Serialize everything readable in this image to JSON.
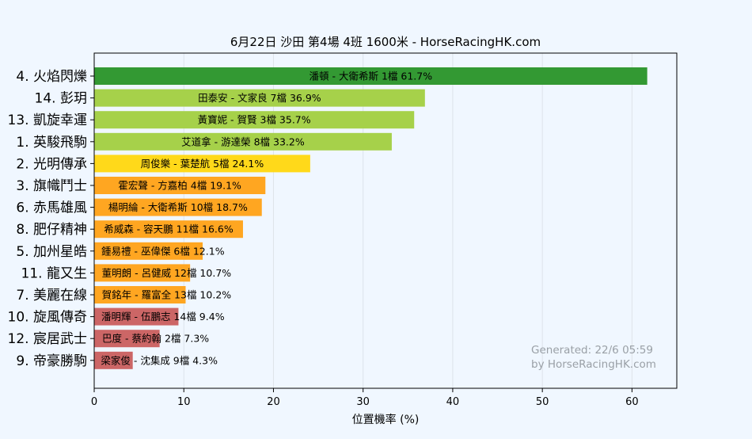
{
  "chart_data": {
    "type": "bar",
    "orientation": "horizontal",
    "title": "6月22日 沙田 第4場 4班 1600米 - HorseRacingHK.com",
    "xlabel": "位置機率 (%)",
    "ylabel": "",
    "xlim": [
      0,
      65
    ],
    "xticks": [
      0,
      10,
      20,
      30,
      40,
      50,
      60
    ],
    "grid": true,
    "categories": [
      "4. 火焰閃爍",
      "14. 彭玥",
      "13. 凱旋幸運",
      "1. 英駿飛駒",
      "2. 光明傳承",
      "3. 旗幟鬥士",
      "6. 赤馬雄風",
      "8. 肥仔精神",
      "5. 加州星皓",
      "11. 龍又生",
      "7. 美麗在線",
      "10. 旋風傳奇",
      "12. 宸居武士",
      "9. 帝豪勝駒"
    ],
    "values": [
      61.7,
      36.9,
      35.7,
      33.2,
      24.1,
      19.1,
      18.7,
      16.6,
      12.1,
      10.7,
      10.2,
      9.4,
      7.3,
      4.3
    ],
    "bar_labels": [
      "潘頓 - 大衛希斯 1檔 61.7%",
      "田泰安 - 文家良 7檔 36.9%",
      "黃寶妮 - 賀賢 3檔 35.7%",
      "艾道拿 - 游達榮 8檔 33.2%",
      "周俊樂 - 葉楚航 5檔 24.1%",
      "霍宏聲 - 方嘉柏 4檔 19.1%",
      "楊明綸 - 大衛希斯 10檔 18.7%",
      "希威森 - 容天鵬 11檔 16.6%",
      "鍾易禮 - 巫偉傑 6檔 12.1%",
      "董明朗 - 呂健威 12檔 10.7%",
      "賀銘年 - 羅富全 13檔 10.2%",
      "潘明輝 - 伍鵬志 14檔 9.4%",
      "巴度 - 蔡約翰 2檔 7.3%",
      "梁家俊 - 沈集成 9檔 4.3%"
    ],
    "bar_colors": [
      "#339933",
      "#a6d14a",
      "#a6d14a",
      "#a6d14a",
      "#ffd91a",
      "#ffa621",
      "#ffa621",
      "#ffa621",
      "#ffa621",
      "#ffa621",
      "#ffa621",
      "#cc6666",
      "#cc6666",
      "#cc6666"
    ],
    "annotation": [
      "Generated: 22/6 05:59",
      "by HorseRacingHK.com"
    ]
  }
}
